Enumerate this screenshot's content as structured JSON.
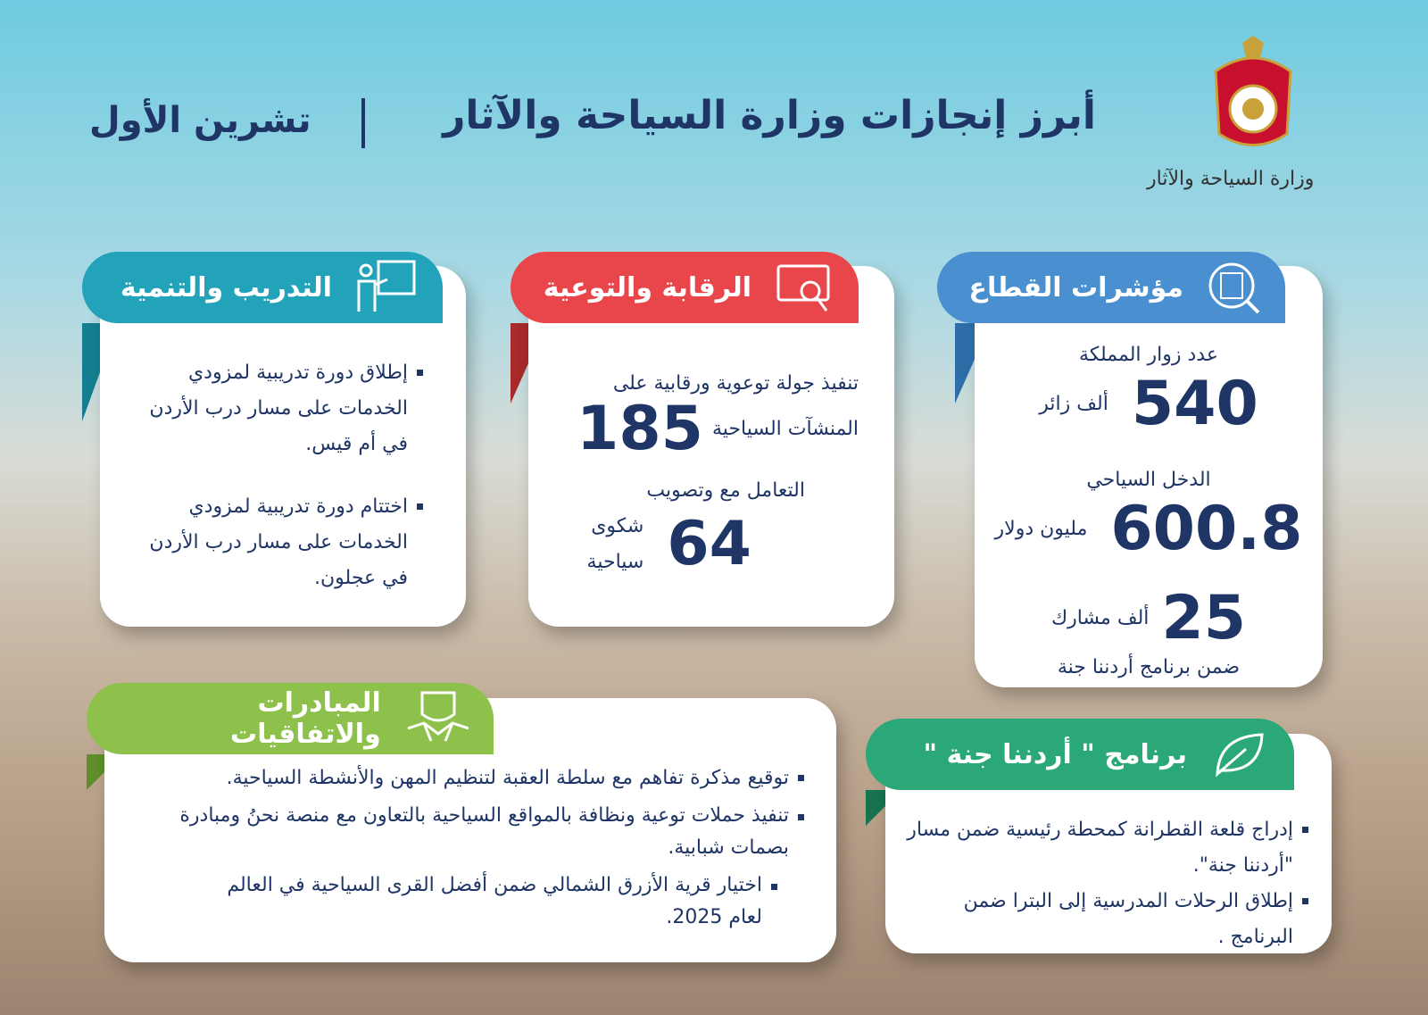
{
  "header": {
    "title": "أبرز إنجازات وزارة السياحة والآثار",
    "subtitle": "تشرين الأول",
    "logo_caption": "وزارة السياحة والآثار"
  },
  "sector_indicators": {
    "title": "مؤشرات القطاع",
    "visitors": {
      "label": "عدد زوار المملكة",
      "number": 540,
      "unit": "ألف زائر"
    },
    "income": {
      "label": "الدخل السياحي",
      "number": 600.8,
      "unit": "مليون دولار"
    },
    "participants": {
      "number": 25,
      "unit": "ألف مشارك",
      "label": "ضمن برنامج أردننا جنة"
    }
  },
  "monitoring": {
    "title": "الرقابة والتوعية",
    "tours": {
      "lines": [
        "تنفيذ  جولة توعوية ورقابية على",
        "المنشآت السياحية"
      ],
      "number": 185
    },
    "complaints": {
      "lines": [
        "التعامل مع وتصويب",
        "شكوى سياحية"
      ],
      "number": 64
    }
  },
  "training": {
    "title": "التدريب والتنمية",
    "bullets": [
      "إطلاق دورة تدريبية لمزودي الخدمات على مسار درب الأردن في أم قيس.",
      "اختتام دورة تدريبية لمزودي الخدمات على مسار درب الأردن في عجلون."
    ]
  },
  "initiatives": {
    "title": "المبادرات والاتفاقيات",
    "bullets": [
      "توقيع مذكرة تفاهم مع سلطة العقبة لتنظيم المهن والأنشطة السياحية.",
      "تنفيذ حملات توعية ونظافة بالمواقع السياحية بالتعاون مع منصة نحنُ ومبادرة بصمات شبابية.",
      "اختيار قرية الأزرق الشمالي ضمن أفضل القرى السياحية في العالم لعام 2025."
    ]
  },
  "program": {
    "title": "برنامج \"  أردننا جنة \"",
    "bullets": [
      "إدراج قلعة القطرانة كمحطة رئيسية ضمن مسار \"أردننا جنة\".",
      "إطلاق الرحلات المدرسية إلى البترا ضمن البرنامج ."
    ]
  }
}
